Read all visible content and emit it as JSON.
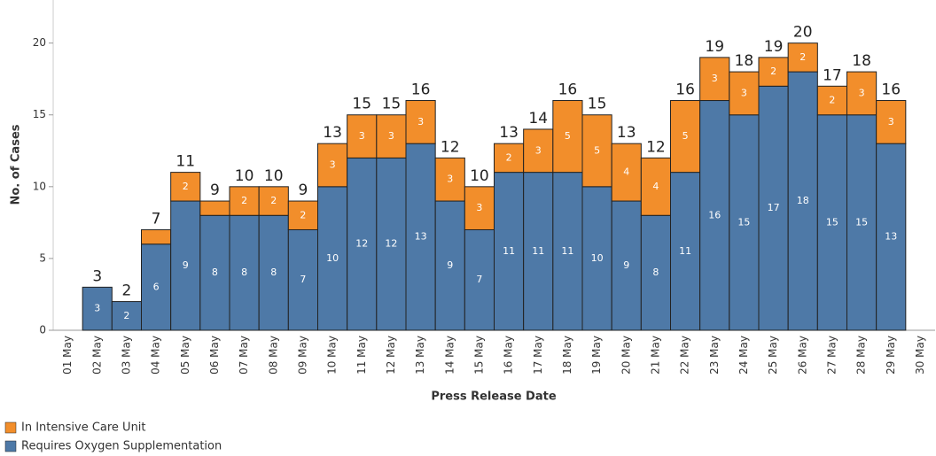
{
  "chart_data": {
    "type": "stacked_bar",
    "x_label": "Press Release Date",
    "y_label": "No. of Cases",
    "categories": [
      "01 May",
      "02 May",
      "03 May",
      "04 May",
      "05 May",
      "06 May",
      "07 May",
      "08 May",
      "09 May",
      "10 May",
      "11 May",
      "12 May",
      "13 May",
      "14 May",
      "15 May",
      "16 May",
      "17 May",
      "18 May",
      "19 May",
      "20 May",
      "21 May",
      "22 May",
      "23 May",
      "24 May",
      "25 May",
      "26 May",
      "27 May",
      "28 May",
      "29 May",
      "30 May"
    ],
    "series": [
      {
        "name": "Requires Oxygen Supplementation",
        "color": "#4e79a7",
        "values": [
          null,
          3,
          2,
          6,
          9,
          8,
          8,
          8,
          7,
          10,
          12,
          12,
          13,
          9,
          7,
          11,
          11,
          11,
          10,
          9,
          8,
          11,
          16,
          15,
          17,
          18,
          15,
          15,
          13,
          null
        ]
      },
      {
        "name": "In Intensive Care Unit",
        "color": "#f28e2b",
        "values": [
          null,
          0,
          0,
          1,
          2,
          1,
          2,
          2,
          2,
          3,
          3,
          3,
          3,
          3,
          3,
          2,
          3,
          5,
          5,
          4,
          4,
          5,
          3,
          3,
          2,
          2,
          2,
          3,
          3,
          null
        ]
      }
    ],
    "totals": [
      null,
      3,
      2,
      7,
      11,
      9,
      10,
      10,
      9,
      13,
      15,
      15,
      16,
      12,
      10,
      13,
      14,
      16,
      15,
      13,
      12,
      16,
      19,
      18,
      19,
      20,
      17,
      18,
      16,
      null
    ],
    "ylim": [
      0,
      23
    ],
    "yticks": [
      0,
      5,
      10,
      15,
      20
    ]
  }
}
